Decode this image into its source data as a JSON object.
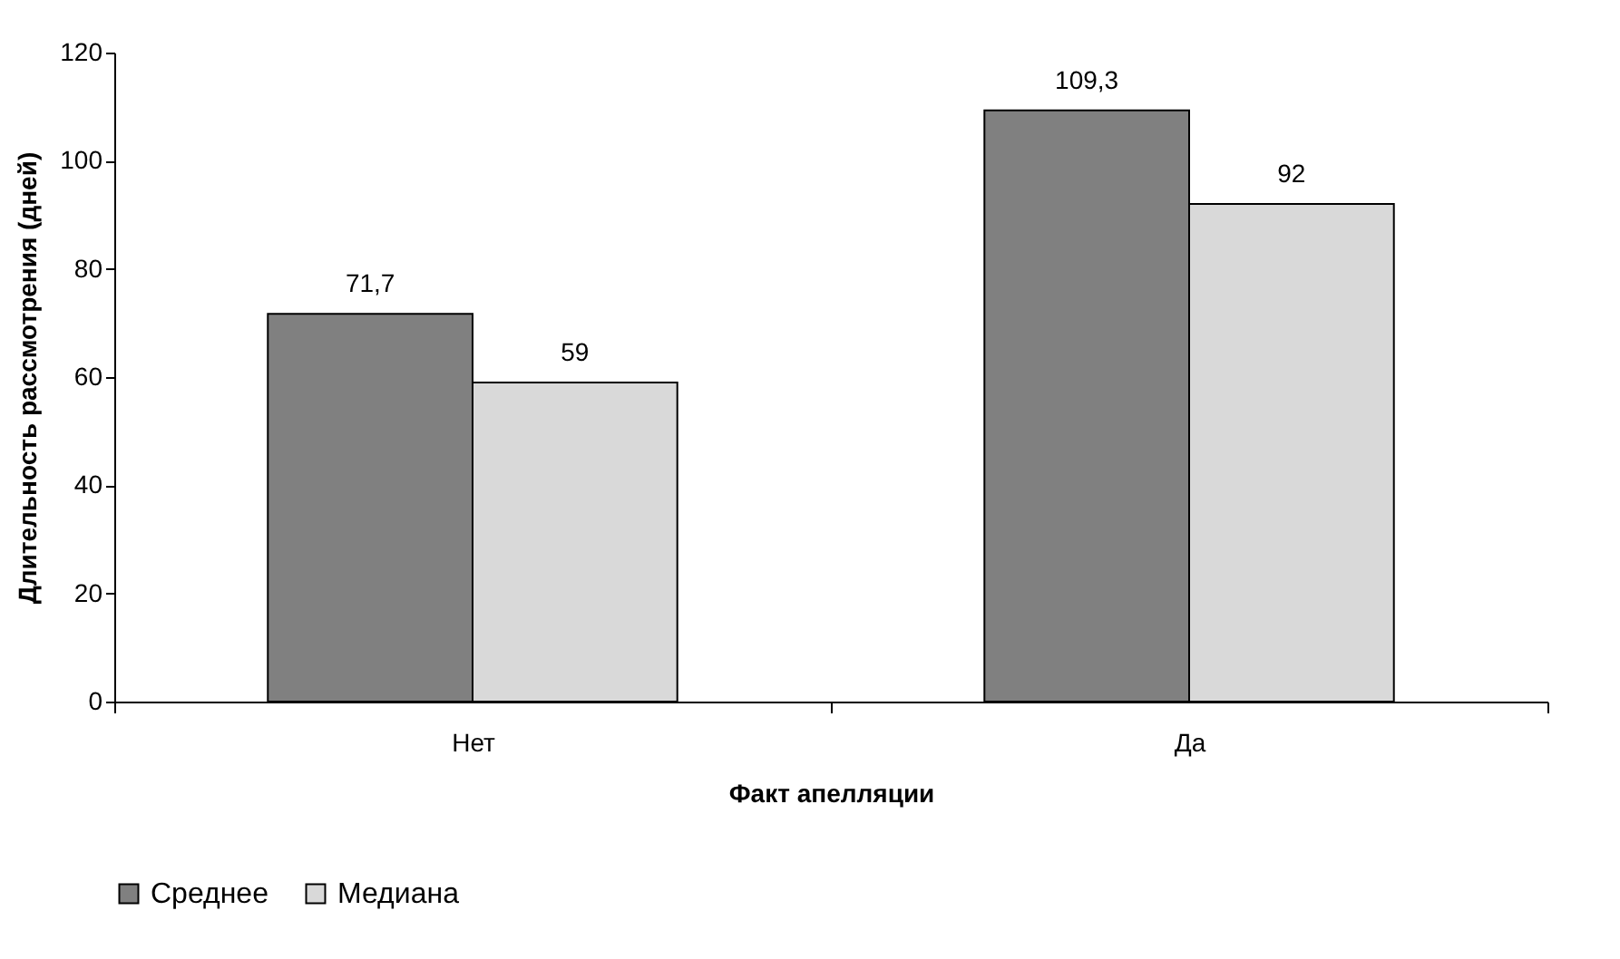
{
  "chart_data": {
    "type": "bar",
    "xlabel": "Факт апелляции",
    "ylabel": "Длительность рассмотрения (дней)",
    "categories": [
      "Нет",
      "Да"
    ],
    "series": [
      {
        "name": "Среднее",
        "color": "#808080",
        "values": [
          71.7,
          109.3
        ],
        "value_labels": [
          "71,7",
          "109,3"
        ]
      },
      {
        "name": "Медиана",
        "color": "#d9d9d9",
        "values": [
          59,
          92
        ],
        "value_labels": [
          "59",
          "92"
        ]
      }
    ],
    "ylim": [
      0,
      120
    ],
    "yticks": [
      0,
      20,
      40,
      60,
      80,
      100,
      120
    ],
    "grid": false,
    "legend": "bottom"
  }
}
